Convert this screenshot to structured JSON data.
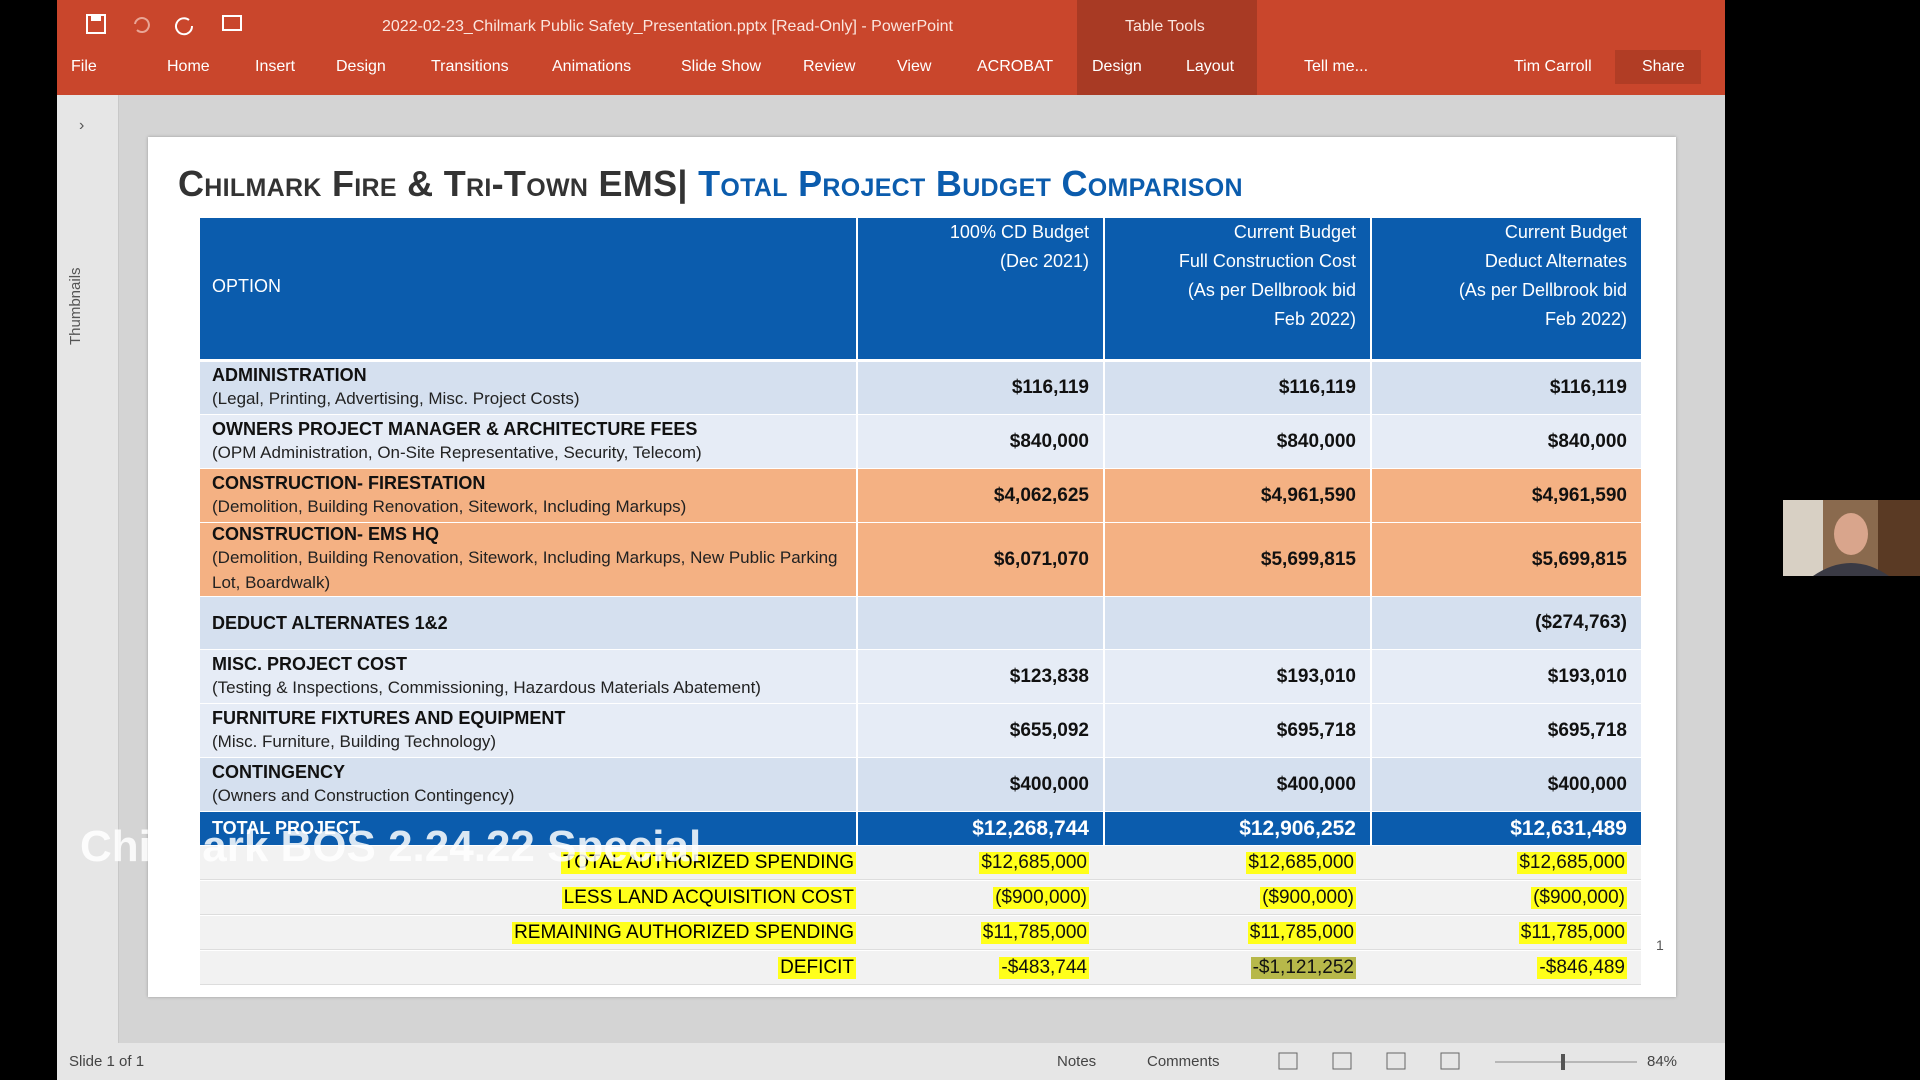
{
  "window": {
    "title": "2022-02-23_Chilmark Public Safety_Presentation.pptx [Read-Only] - PowerPoint",
    "context": "Table Tools",
    "tabs": [
      "File",
      "Home",
      "Insert",
      "Design",
      "Transitions",
      "Animations",
      "Slide Show",
      "Review",
      "View",
      "ACROBAT",
      "Design",
      "Layout",
      "Tell me..."
    ],
    "user": "Tim Carroll",
    "share": "Share"
  },
  "sidebar": {
    "label": "Thumbnails"
  },
  "slide": {
    "title_left": "Chilmark Fire & Tri-Town EMS|",
    "title_right": "Total Project Budget Comparison",
    "table": {
      "option": "OPTION",
      "headers": [
        [
          "100% CD Budget",
          "(Dec 2021)"
        ],
        [
          "Current Budget",
          "Full Construction Cost",
          "(As per Dellbrook bid",
          "Feb 2022)"
        ],
        [
          "Current Budget",
          "Deduct Alternates",
          "(As per Dellbrook bid",
          "Feb 2022)"
        ]
      ],
      "rows": [
        {
          "name": "ADMINISTRATION",
          "desc": "(Legal, Printing, Advertising, Misc. Project Costs)",
          "values": [
            "$116,119",
            "$116,119",
            "$116,119"
          ]
        },
        {
          "name": "OWNERS PROJECT MANAGER & ARCHITECTURE FEES",
          "desc": "(OPM Administration, On-Site Representative, Security, Telecom)",
          "values": [
            "$840,000",
            "$840,000",
            "$840,000"
          ]
        },
        {
          "name": "CONSTRUCTION- FIRESTATION",
          "desc": "(Demolition, Building Renovation, Sitework, Including Markups)",
          "values": [
            "$4,062,625",
            "$4,961,590",
            "$4,961,590"
          ]
        },
        {
          "name": "CONSTRUCTION- EMS HQ",
          "desc": "(Demolition, Building Renovation, Sitework, Including Markups, New Public Parking Lot, Boardwalk)",
          "values": [
            "$6,071,070",
            "$5,699,815",
            "$5,699,815"
          ]
        },
        {
          "name": "DEDUCT ALTERNATES 1&2",
          "desc": null,
          "values": [
            null,
            null,
            "($274,763)"
          ]
        },
        {
          "name": "MISC. PROJECT COST",
          "desc": "(Testing & Inspections, Commissioning, Hazardous Materials Abatement)",
          "values": [
            "$123,838",
            "$193,010",
            "$193,010"
          ]
        },
        {
          "name": "FURNITURE FIXTURES AND EQUIPMENT",
          "desc": "(Misc. Furniture, Building Technology)",
          "values": [
            "$655,092",
            "$695,718",
            "$695,718"
          ]
        },
        {
          "name": "CONTINGENCY",
          "desc": "(Owners and Construction Contingency)",
          "values": [
            "$400,000",
            "$400,000",
            "$400,000"
          ]
        }
      ],
      "total": {
        "name": "TOTAL PROJECT",
        "values": [
          "$12,268,744",
          "$12,906,252",
          "$12,631,489"
        ]
      },
      "summary": [
        {
          "label": "TOTAL AUTHORIZED SPENDING",
          "values": [
            "$12,685,000",
            "$12,685,000",
            "$12,685,000"
          ]
        },
        {
          "label": "LESS LAND ACQUISITION COST",
          "values": [
            "($900,000)",
            "($900,000)",
            "($900,000)"
          ]
        },
        {
          "label": "REMAINING AUTHORIZED SPENDING",
          "values": [
            "$11,785,000",
            "$11,785,000",
            "$11,785,000"
          ]
        },
        {
          "label": "DEFICIT",
          "values": [
            "-$483,744",
            "-$1,121,252",
            "-$846,489"
          ]
        }
      ]
    },
    "page_number": "1"
  },
  "status": {
    "slide": "Slide 1 of 1",
    "notes": "Notes",
    "comments": "Comments",
    "zoom": "84%"
  },
  "overlay": "Chilmark BOS 2.24.22 Special"
}
